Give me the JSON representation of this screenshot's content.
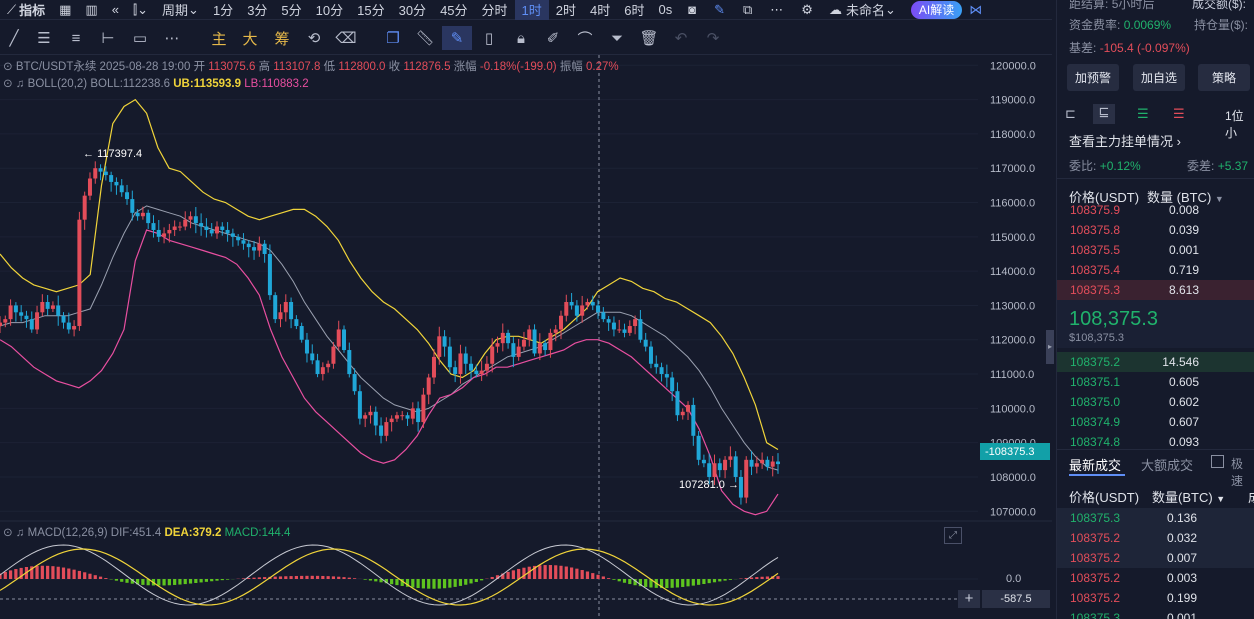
{
  "topbar": {
    "items": [
      {
        "id": "indicators",
        "label": "指标",
        "icon": "chart-line-icon"
      },
      {
        "id": "calendar",
        "label": "",
        "icon": "calendar-icon"
      },
      {
        "id": "layout",
        "label": "",
        "icon": "layout-icon"
      },
      {
        "id": "replay",
        "label": "",
        "icon": "rewind-icon"
      },
      {
        "id": "candle-style",
        "label": "",
        "icon": "candlestick-icon"
      },
      {
        "id": "period",
        "label": "周期"
      },
      {
        "id": "1m",
        "label": "1分"
      },
      {
        "id": "3m",
        "label": "3分"
      },
      {
        "id": "5m",
        "label": "5分"
      },
      {
        "id": "10m",
        "label": "10分"
      },
      {
        "id": "15m",
        "label": "15分"
      },
      {
        "id": "30m",
        "label": "30分"
      },
      {
        "id": "45m",
        "label": "45分"
      },
      {
        "id": "time",
        "label": "分时"
      },
      {
        "id": "1h",
        "label": "1时",
        "active": true
      },
      {
        "id": "2h",
        "label": "2时"
      },
      {
        "id": "4h",
        "label": "4时"
      },
      {
        "id": "6h",
        "label": "6时"
      },
      {
        "id": "0s",
        "label": "0s"
      }
    ],
    "unnamed_label": "未命名",
    "ai_label": "AI解读"
  },
  "toolbar": {
    "main_label": "主",
    "big_label": "大",
    "chip_label": "筹"
  },
  "legend": {
    "symbol": "BTC/USDT永续",
    "datetime": "2025-08-28 19:00",
    "open_label": "开",
    "open": "113075.6",
    "high_label": "高",
    "high": "113107.8",
    "low_label": "低",
    "low": "112800.0",
    "close_label": "收",
    "close": "112876.5",
    "change_label": "涨幅",
    "change": "-0.18%(-199.0)",
    "amp_label": "振幅",
    "amp": "0.27%",
    "boll_name": "BOLL(20,2)",
    "boll_mid": "BOLL:112238.6",
    "boll_ub": "UB:113593.9",
    "boll_lb": "LB:110883.2",
    "macd_name": "MACD(12,26,9)",
    "dif": "DIF:451.4",
    "dea": "DEA:379.2",
    "macd": "MACD:144.4"
  },
  "annotations": {
    "high_marker": "117397.4",
    "low_marker": "107281.0",
    "current_price": "108375.3",
    "crosshair_value": "-587.5",
    "macd_zero": "0.0"
  },
  "chart_data": {
    "type": "candlestick",
    "y_axis_ticks": [
      120000,
      119000,
      118000,
      117000,
      116000,
      115000,
      114000,
      113000,
      112000,
      111000,
      110000,
      109000,
      108000,
      107000
    ],
    "y_tick_labels": [
      "120000.0",
      "119000.0",
      "118000.0",
      "117000.0",
      "116000.0",
      "115000.0",
      "114000.0",
      "113000.0",
      "112000.0",
      "111000.0",
      "110000.0",
      "109000.0",
      "108000.0",
      "107000.0"
    ],
    "ylim": [
      106600,
      120300
    ],
    "close_path": [
      112500,
      112600,
      113000,
      112800,
      112700,
      112600,
      112300,
      112800,
      113100,
      112900,
      113000,
      112700,
      112500,
      112300,
      112400,
      115500,
      116200,
      116700,
      117000,
      116900,
      116800,
      116600,
      116500,
      116300,
      116100,
      115700,
      115600,
      115700,
      115400,
      115200,
      115000,
      115100,
      115200,
      115300,
      115300,
      115500,
      115600,
      115400,
      115300,
      115200,
      115100,
      115300,
      115200,
      115100,
      115000,
      114900,
      114800,
      114700,
      114600,
      114800,
      114500,
      113300,
      112600,
      112800,
      113100,
      112600,
      112400,
      112000,
      111600,
      111400,
      111000,
      111200,
      111300,
      111800,
      112300,
      111700,
      111000,
      110500,
      109700,
      109800,
      109900,
      109500,
      109200,
      109600,
      109700,
      109800,
      109800,
      109700,
      110000,
      109600,
      110400,
      110900,
      111500,
      112100,
      111800,
      111200,
      111000,
      111600,
      111300,
      111100,
      111000,
      111100,
      111300,
      111800,
      111900,
      112200,
      111900,
      111500,
      111800,
      112000,
      112300,
      111600,
      111900,
      111700,
      112200,
      112300,
      112700,
      113100,
      113000,
      112700,
      113000,
      113100,
      113000,
      112800,
      112600,
      112500,
      112300,
      112300,
      112200,
      112400,
      112600,
      112000,
      111800,
      111300,
      111200,
      111000,
      110900,
      110500,
      109800,
      109900,
      110100,
      109200,
      108500,
      108400,
      108000,
      108400,
      108200,
      108500,
      108600,
      108000,
      107400,
      108500,
      108300,
      108400,
      108500,
      108300,
      108450,
      108375
    ],
    "boll_upper_path": [
      114500,
      114100,
      113800,
      113600,
      113500,
      113400,
      113500,
      113600,
      113900,
      116500,
      118300,
      118800,
      119000,
      118600,
      117600,
      117000,
      116900,
      116600,
      116300,
      116100,
      116000,
      115800,
      115600,
      115500,
      115600,
      115700,
      115800,
      115800,
      115600,
      115300,
      114900,
      114300,
      113800,
      113400,
      113100,
      112900,
      112600,
      112300,
      111900,
      111400,
      111000,
      110900,
      111100,
      111600,
      112000,
      112100,
      112100,
      112000,
      111900,
      112100,
      112300,
      112600,
      112900,
      113400,
      113600,
      113800,
      113700,
      113500,
      113400,
      113200,
      113100,
      112900,
      112700,
      112500,
      112100,
      111600,
      110900,
      110100,
      109000,
      108800
    ],
    "boll_mid_path": [
      112400,
      112500,
      112500,
      112600,
      112700,
      112700,
      112700,
      112800,
      112900,
      113600,
      114400,
      115100,
      115700,
      115900,
      115800,
      115700,
      115600,
      115400,
      115300,
      115200,
      115100,
      115000,
      114900,
      114800,
      114600,
      114200,
      113700,
      113100,
      112600,
      112100,
      111700,
      111300,
      110900,
      110600,
      110300,
      110100,
      110000,
      109900,
      110000,
      110200,
      110400,
      110700,
      110900,
      111100,
      111300,
      111500,
      111600,
      111700,
      111800,
      112000,
      112200,
      112400,
      112600,
      112800,
      112800,
      112800,
      112700,
      112500,
      112300,
      112100,
      111800,
      111500,
      111100,
      110600,
      110000,
      109500,
      109000,
      108600,
      108300,
      108200
    ],
    "boll_lower_path": [
      112000,
      111800,
      111500,
      111200,
      111000,
      110800,
      110700,
      110600,
      110800,
      111100,
      111600,
      112300,
      114300,
      115200,
      115100,
      114900,
      114800,
      114700,
      114600,
      114500,
      114400,
      114200,
      113800,
      113300,
      112300,
      111500,
      110900,
      110300,
      109900,
      109600,
      109300,
      109000,
      108700,
      108500,
      108400,
      108500,
      108800,
      109200,
      109800,
      110300,
      110400,
      110600,
      110900,
      111000,
      111200,
      111200,
      111300,
      111400,
      111500,
      111600,
      111700,
      111900,
      112000,
      112000,
      111900,
      111700,
      111500,
      111200,
      110900,
      110600,
      110300,
      110000,
      109400,
      108600,
      107600,
      107200,
      107000,
      106900,
      107000,
      107500
    ]
  },
  "right_panel": {
    "header": {
      "settle_label": "距结算:",
      "settle_value": "5小时后",
      "volume_label": "成交额($):",
      "funding_label": "资金费率:",
      "funding_value": "0.0069%",
      "oi_label": "持仓量($):",
      "basis_label": "基差:",
      "basis_value": "-105.4 (-0.097%)"
    },
    "buttons": [
      "加预警",
      "加自选",
      "策略"
    ],
    "depth_label": "1位小",
    "main_orders_title": "查看主力挂单情况",
    "ratio_label": "委比:",
    "ratio_value": "+0.12%",
    "diff_label": "委差:",
    "diff_value": "+5.37",
    "ob_cols": [
      "价格(USDT)",
      "数量 (BTC)"
    ],
    "asks": [
      {
        "p": "108375.9",
        "q": "0.008"
      },
      {
        "p": "108375.8",
        "q": "0.039"
      },
      {
        "p": "108375.5",
        "q": "0.001"
      },
      {
        "p": "108375.4",
        "q": "0.719"
      },
      {
        "p": "108375.3",
        "q": "8.613"
      }
    ],
    "last_price": "108,375.3",
    "last_price_usd": "$108,375.3",
    "bids": [
      {
        "p": "108375.2",
        "q": "14.546"
      },
      {
        "p": "108375.1",
        "q": "0.605"
      },
      {
        "p": "108375.0",
        "q": "0.602"
      },
      {
        "p": "108374.9",
        "q": "0.607"
      },
      {
        "p": "108374.8",
        "q": "0.093"
      }
    ],
    "trades_tab1": "最新成交",
    "trades_tab2": "大额成交",
    "trades_chk": "极速",
    "trade_cols": [
      "价格(USDT)",
      "数量(BTC)",
      "成"
    ],
    "trades": [
      {
        "p": "108375.3",
        "q": "0.136",
        "side": "buy"
      },
      {
        "p": "108375.2",
        "q": "0.032",
        "side": "sell"
      },
      {
        "p": "108375.2",
        "q": "0.007",
        "side": "sell"
      },
      {
        "p": "108375.2",
        "q": "0.003",
        "side": "sell"
      },
      {
        "p": "108375.2",
        "q": "0.199",
        "side": "sell"
      },
      {
        "p": "108375.3",
        "q": "0.001",
        "side": "buy"
      }
    ]
  },
  "colors": {
    "up": "#e34d5a",
    "down": "#20a7d8",
    "ub": "#f0d43a",
    "mid": "#9aa0b0",
    "lb": "#e84fa0",
    "accent": "#5f8ef5",
    "bg": "#151a2b"
  }
}
